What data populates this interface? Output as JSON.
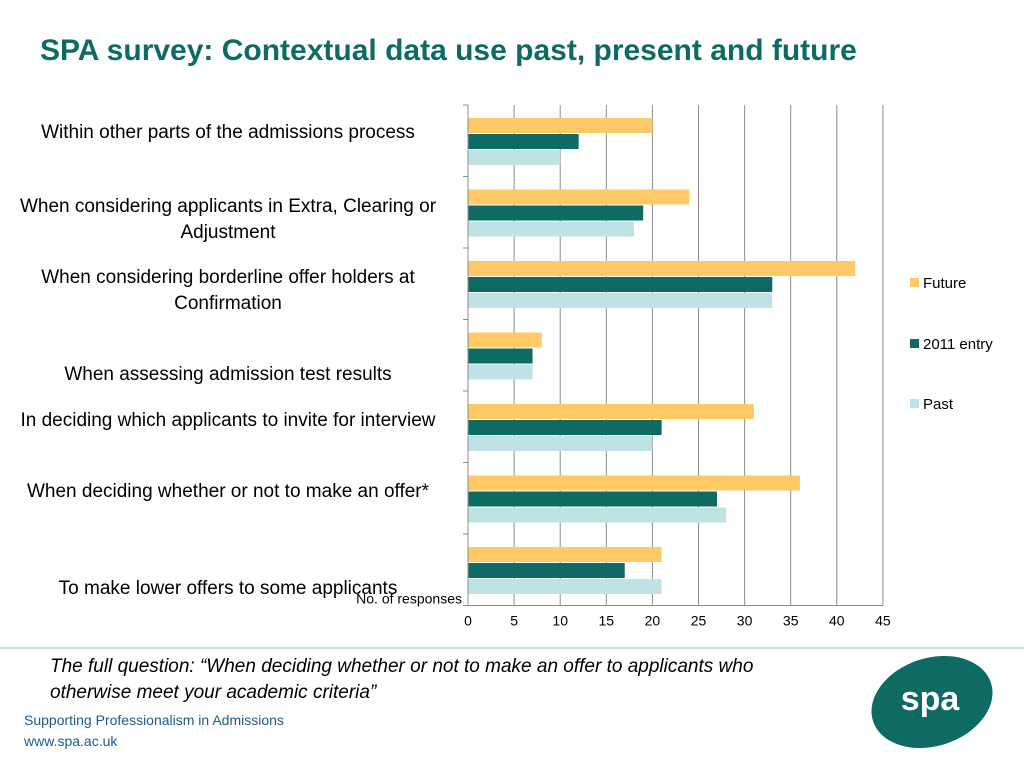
{
  "slide": {
    "title": "SPA survey: Contextual data use past, present and future",
    "question": "The full question: “When deciding whether or not to make an offer to applicants who otherwise meet your academic criteria”",
    "footer_org": "Supporting Professionalism in Admissions",
    "footer_url": "www.spa.ac.uk",
    "logo_text": "spa"
  },
  "colors": {
    "title": "#0e6b64",
    "future": "#ffc966",
    "entry_2011": "#0e6b64",
    "past": "#bfe3e5",
    "footer": "#1f5b8a",
    "logo": "#0e6b64"
  },
  "chart_data": {
    "type": "bar",
    "orientation": "horizontal",
    "categories": [
      "Within other parts of the admissions process",
      "When considering applicants in Extra, Clearing or Adjustment",
      "When considering borderline offer holders at Confirmation",
      "When assessing admission test results",
      "In deciding which applicants to invite for interview",
      "When deciding whether or not to make an offer*",
      "To make lower offers to some applicants"
    ],
    "series": [
      {
        "name": "Future",
        "values": [
          20,
          24,
          42,
          8,
          31,
          36,
          21
        ]
      },
      {
        "name": "2011 entry",
        "values": [
          12,
          19,
          33,
          7,
          21,
          27,
          17
        ]
      },
      {
        "name": "Past",
        "values": [
          10,
          18,
          33,
          7,
          20,
          28,
          21
        ]
      }
    ],
    "xlabel": "No. of responses",
    "xlim": [
      0,
      45
    ],
    "xticks": [
      0,
      5,
      10,
      15,
      20,
      25,
      30,
      35,
      40,
      45
    ],
    "grid": true,
    "legend_position": "right"
  }
}
